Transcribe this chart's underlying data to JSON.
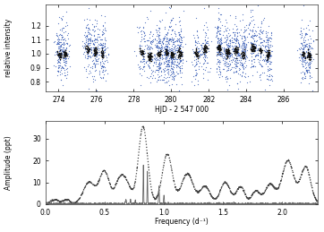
{
  "top_panel": {
    "xlabel": "HJD - 2 547 000",
    "ylabel": "relative intensity",
    "xlim": [
      273.3,
      287.8
    ],
    "ylim": [
      0.73,
      1.35
    ],
    "yticks": [
      0.8,
      0.9,
      1.0,
      1.1,
      1.2
    ],
    "xticks": [
      274,
      276,
      278,
      280,
      282,
      284,
      286
    ],
    "scatter_color_blue": "#4466bb",
    "scatter_color_black": "#111111"
  },
  "bottom_panel": {
    "xlabel": "Frequency (d⁻¹)",
    "ylabel": "Amplitude (ppt)",
    "xlim": [
      0.0,
      2.3
    ],
    "ylim": [
      0.0,
      38
    ],
    "yticks": [
      0,
      10,
      20,
      30
    ],
    "xticks": [
      0.0,
      0.5,
      1.0,
      1.5,
      2.0
    ],
    "dotted_color": "#444444",
    "solid_color": "#666666"
  },
  "background_color": "#ffffff",
  "panel_bg": "#ffffff"
}
